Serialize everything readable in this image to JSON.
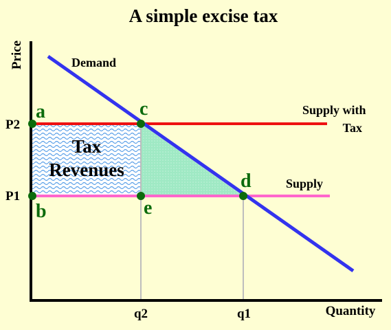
{
  "chart_data": {
    "type": "line",
    "title": "A simple excise tax",
    "xlabel": "Quantity",
    "ylabel": "Price",
    "x_ticks": [
      "q2",
      "q1"
    ],
    "y_ticks": [
      "P2",
      "P1"
    ],
    "series": [
      {
        "name": "Demand",
        "color": "#3333ee"
      },
      {
        "name": "Supply with Tax",
        "color": "#ee1111"
      },
      {
        "name": "Supply",
        "color": "#ff66cc"
      }
    ],
    "points": [
      "a",
      "b",
      "c",
      "d",
      "e"
    ],
    "areas": [
      {
        "label": "Tax Revenues",
        "lines": [
          "Tax",
          "Revenues"
        ]
      }
    ],
    "colors": {
      "background": "#fefed3",
      "points": "#0c6b0c",
      "deadweight_fill": "#a8eec8",
      "revenue_pattern": "#5aa0e8",
      "guide_lines": "#bdbdbd"
    }
  }
}
